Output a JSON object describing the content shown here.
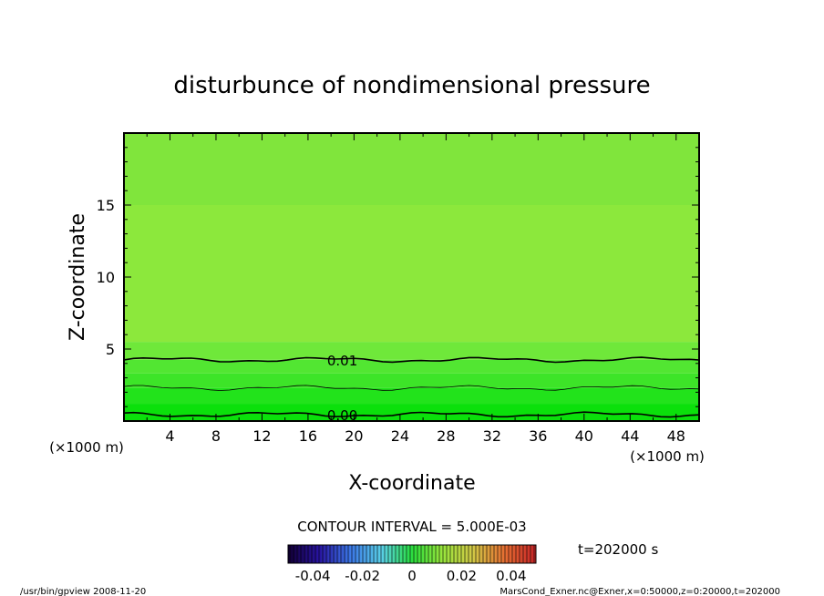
{
  "chart_data": {
    "type": "heatmap",
    "title": "disturbunce of nondimensional pressure",
    "xlabel": "X-coordinate",
    "ylabel": "Z-coordinate",
    "x_unit": "(×1000 m)",
    "y_unit": "(×1000 m)",
    "xlim": [
      0,
      50
    ],
    "ylim": [
      0,
      20
    ],
    "x_ticks": [
      "4",
      "8",
      "12",
      "16",
      "20",
      "24",
      "28",
      "32",
      "36",
      "40",
      "44",
      "48"
    ],
    "y_ticks": [
      "5",
      "10",
      "15"
    ],
    "x_tick_values": [
      4,
      8,
      12,
      16,
      20,
      24,
      28,
      32,
      36,
      40,
      44,
      48
    ],
    "y_tick_values": [
      5,
      10,
      15
    ],
    "contours": [
      {
        "label": "0.01",
        "value": 0.01,
        "z": 4.25,
        "labeled": true
      },
      {
        "label": "0.005",
        "value": 0.005,
        "z": 2.3,
        "labeled": false
      },
      {
        "label": "0.00",
        "value": 0.0,
        "z": 0.45,
        "labeled": true
      }
    ],
    "contour_label_x": 17.5,
    "fill_bands": [
      {
        "z0": 0,
        "z1": 1.2,
        "color": "#0be00b"
      },
      {
        "z0": 1.2,
        "z1": 2.3,
        "color": "#22e31b"
      },
      {
        "z0": 2.3,
        "z1": 3.3,
        "color": "#3de428"
      },
      {
        "z0": 3.3,
        "z1": 4.25,
        "color": "#52e632"
      },
      {
        "z0": 4.25,
        "z1": 5.5,
        "color": "#6fe83a"
      },
      {
        "z0": 5.5,
        "z1": 15,
        "color": "#8ce83c"
      },
      {
        "z0": 15,
        "z1": 20,
        "color": "#80e53c"
      }
    ],
    "contour_interval_label": "CONTOUR INTERVAL = 5.000E-03",
    "colorbar": {
      "ticks": [
        "-0.04",
        "-0.02",
        "0",
        "0.02",
        "0.04"
      ],
      "tick_values": [
        -0.04,
        -0.02,
        0,
        0.02,
        0.04
      ],
      "range": [
        -0.05,
        0.05
      ]
    },
    "time_label": "t=202000  s"
  },
  "footer": {
    "left": "/usr/bin/gpview   2008-11-20",
    "right": "MarsCond_Exner.nc@Exner,x=0:50000,z=0:20000,t=202000"
  }
}
